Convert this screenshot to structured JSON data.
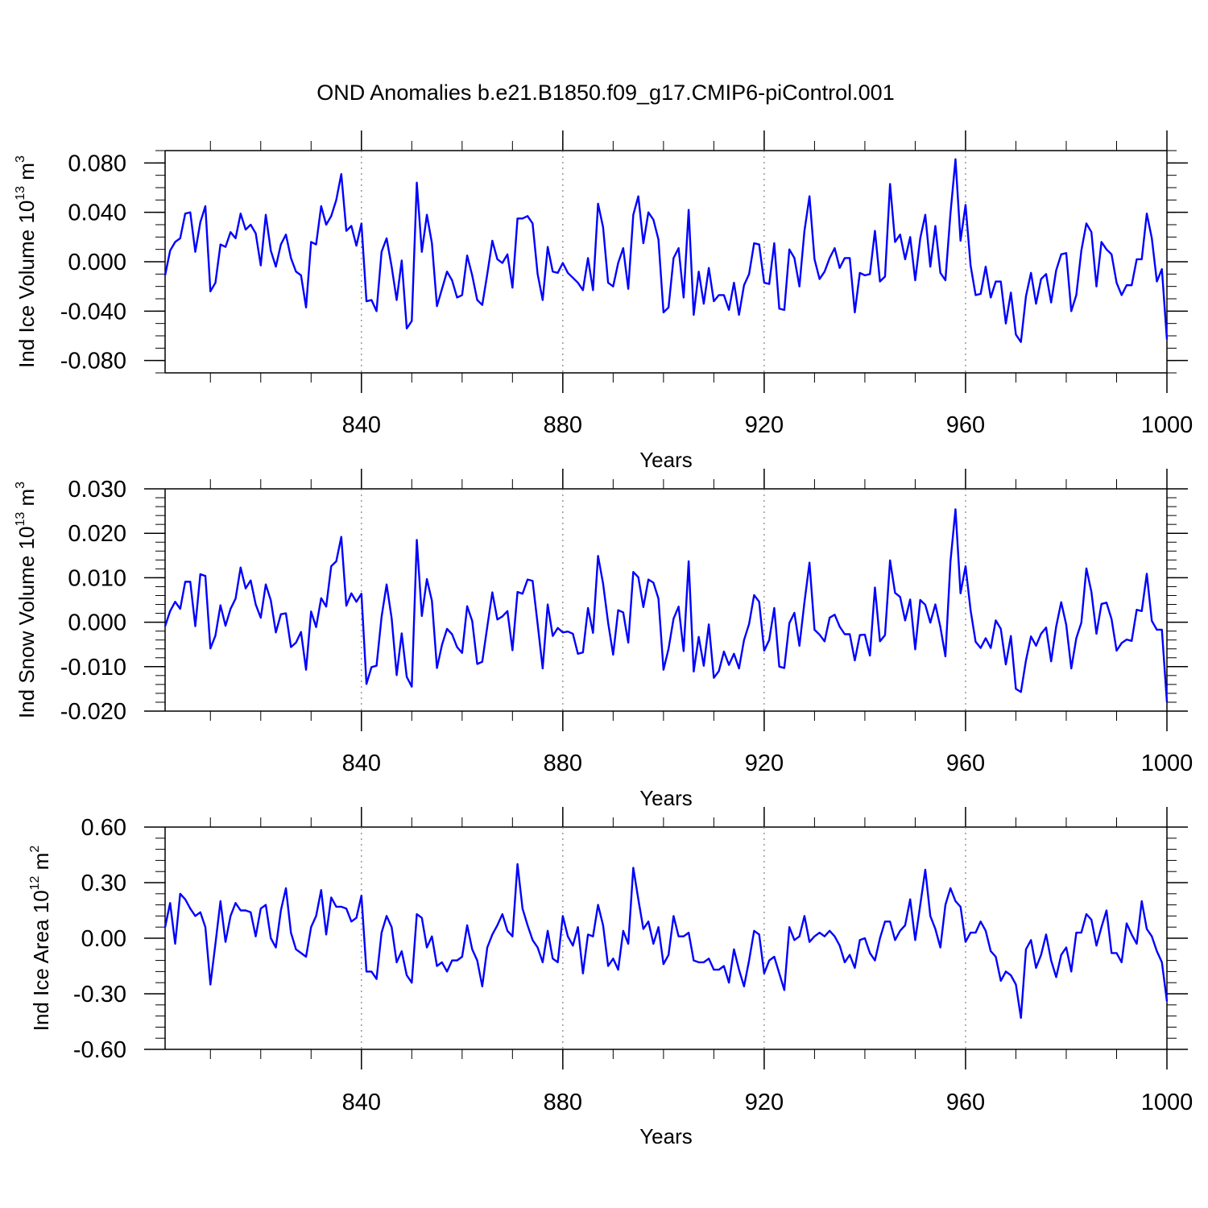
{
  "chart_data": {
    "title": "OND Anomalies b.e21.B1850.f09_g17.CMIP6-piControl.001",
    "panels": [
      {
        "type": "line",
        "ylabel_main": "Ind Ice Volume 10",
        "ylabel_exp": "13",
        "ylabel_unit": " m",
        "ylabel_unit_exp": "3",
        "xlabel": "Years",
        "xlim": [
          801,
          1000
        ],
        "ylim": [
          -0.09,
          0.09
        ],
        "yticks": [
          -0.08,
          -0.04,
          0.0,
          0.04,
          0.08
        ],
        "ytick_labels": [
          "-0.080",
          "-0.040",
          "0.000",
          "0.040",
          "0.080"
        ],
        "ytick_minor_step": 0.01,
        "xticks": [
          840,
          880,
          920,
          960,
          1000
        ],
        "xtick_labels": [
          "840",
          "880",
          "920",
          "960",
          "1000"
        ],
        "xtick_minor_step": 10,
        "vlines": [
          840,
          880,
          920,
          960
        ],
        "x_start": 801,
        "values": [
          -0.011,
          0.009,
          0.016,
          0.019,
          0.039,
          0.04,
          0.008,
          0.032,
          0.045,
          -0.024,
          -0.017,
          0.014,
          0.012,
          0.024,
          0.019,
          0.039,
          0.026,
          0.03,
          0.023,
          -0.003,
          0.038,
          0.009,
          -0.004,
          0.014,
          0.022,
          0.003,
          -0.008,
          -0.011,
          -0.037,
          0.016,
          0.014,
          0.045,
          0.03,
          0.037,
          0.05,
          0.071,
          0.025,
          0.029,
          0.013,
          0.031,
          -0.032,
          -0.031,
          -0.04,
          0.008,
          0.019,
          -0.004,
          -0.031,
          0.001,
          -0.054,
          -0.048,
          0.064,
          0.008,
          0.038,
          0.015,
          -0.036,
          -0.022,
          -0.008,
          -0.015,
          -0.029,
          -0.027,
          0.005,
          -0.011,
          -0.031,
          -0.035,
          -0.01,
          0.017,
          0.002,
          -0.001,
          0.006,
          -0.021,
          0.035,
          0.035,
          0.037,
          0.031,
          -0.01,
          -0.031,
          0.012,
          -0.008,
          -0.009,
          -0.001,
          -0.009,
          -0.013,
          -0.017,
          -0.023,
          0.003,
          -0.023,
          0.047,
          0.028,
          -0.017,
          -0.02,
          -0.001,
          0.011,
          -0.022,
          0.038,
          0.053,
          0.015,
          0.04,
          0.034,
          0.018,
          -0.041,
          -0.037,
          0.003,
          0.011,
          -0.029,
          0.042,
          -0.043,
          -0.008,
          -0.034,
          -0.005,
          -0.032,
          -0.027,
          -0.027,
          -0.039,
          -0.017,
          -0.043,
          -0.019,
          -0.01,
          0.015,
          0.014,
          -0.017,
          -0.018,
          0.015,
          -0.038,
          -0.039,
          0.01,
          0.003,
          -0.02,
          0.025,
          0.053,
          0.002,
          -0.014,
          -0.008,
          0.003,
          0.011,
          -0.005,
          0.003,
          0.003,
          -0.041,
          -0.009,
          -0.011,
          -0.01,
          0.025,
          -0.016,
          -0.012,
          0.063,
          0.016,
          0.022,
          0.002,
          0.02,
          -0.015,
          0.019,
          0.038,
          -0.004,
          0.029,
          -0.009,
          -0.015,
          0.039,
          0.083,
          0.017,
          0.046,
          -0.003,
          -0.027,
          -0.026,
          -0.004,
          -0.029,
          -0.016,
          -0.016,
          -0.05,
          -0.025,
          -0.059,
          -0.065,
          -0.028,
          -0.009,
          -0.034,
          -0.014,
          -0.01,
          -0.033,
          -0.007,
          0.006,
          0.007,
          -0.04,
          -0.027,
          0.009,
          0.031,
          0.024,
          -0.02,
          0.016,
          0.01,
          0.006,
          -0.017,
          -0.027,
          -0.019,
          -0.019,
          0.002,
          0.002,
          0.039,
          0.019,
          -0.016,
          -0.006,
          -0.063
        ]
      },
      {
        "type": "line",
        "ylabel_main": "Ind Snow Volume 10",
        "ylabel_exp": "13",
        "ylabel_unit": " m",
        "ylabel_unit_exp": "3",
        "xlabel": "Years",
        "xlim": [
          801,
          1000
        ],
        "ylim": [
          -0.02,
          0.03
        ],
        "yticks": [
          -0.02,
          -0.01,
          0.0,
          0.01,
          0.02,
          0.03
        ],
        "ytick_labels": [
          "-0.020",
          "-0.010",
          "0.000",
          "0.010",
          "0.020",
          "0.030"
        ],
        "ytick_minor_step": 0.002,
        "xticks": [
          840,
          880,
          920,
          960,
          1000
        ],
        "xtick_labels": [
          "840",
          "880",
          "920",
          "960",
          "1000"
        ],
        "xtick_minor_step": 10,
        "vlines": [
          840,
          880,
          920,
          960
        ],
        "x_start": 801,
        "values": [
          -0.0009,
          0.0025,
          0.0046,
          0.003,
          0.0091,
          0.0091,
          -0.0009,
          0.0108,
          0.0104,
          -0.0059,
          -0.003,
          0.0038,
          -0.0008,
          0.003,
          0.0053,
          0.0123,
          0.0076,
          0.0094,
          0.004,
          0.001,
          0.0085,
          0.0049,
          -0.0023,
          0.0018,
          0.002,
          -0.0056,
          -0.0046,
          -0.0022,
          -0.0107,
          0.0024,
          -0.0011,
          0.0054,
          0.0035,
          0.0126,
          0.0137,
          0.0192,
          0.0037,
          0.0065,
          0.0046,
          0.0064,
          -0.0139,
          -0.0101,
          -0.0098,
          0.0012,
          0.0085,
          0.0009,
          -0.0119,
          -0.0025,
          -0.0123,
          -0.0145,
          0.0185,
          0.0014,
          0.0097,
          0.0048,
          -0.0103,
          -0.0051,
          -0.0015,
          -0.0027,
          -0.0056,
          -0.0069,
          0.0036,
          0.0003,
          -0.0094,
          -0.0089,
          -0.001,
          0.0067,
          0.0006,
          0.0013,
          0.0025,
          -0.0063,
          0.0068,
          0.0064,
          0.0096,
          0.0093,
          -0.0004,
          -0.0104,
          0.004,
          -0.0031,
          -0.0013,
          -0.0023,
          -0.0021,
          -0.0026,
          -0.0071,
          -0.0068,
          0.0032,
          -0.0024,
          0.0149,
          0.0087,
          -0.0001,
          -0.0073,
          0.0027,
          0.0022,
          -0.0046,
          0.0113,
          0.0101,
          0.0034,
          0.0096,
          0.0089,
          0.0053,
          -0.0107,
          -0.006,
          0.0008,
          0.0035,
          -0.0065,
          0.0137,
          -0.0111,
          -0.0033,
          -0.0098,
          -0.0005,
          -0.0125,
          -0.011,
          -0.0066,
          -0.0096,
          -0.0071,
          -0.0104,
          -0.004,
          -0.0004,
          0.0061,
          0.0046,
          -0.0064,
          -0.004,
          0.0032,
          -0.01,
          -0.0103,
          -0.0002,
          0.0021,
          -0.0053,
          0.0045,
          0.0134,
          -0.0017,
          -0.0028,
          -0.0043,
          0.001,
          0.0017,
          -0.001,
          -0.0027,
          -0.0027,
          -0.0086,
          -0.0029,
          -0.0028,
          -0.0075,
          0.0078,
          -0.0043,
          -0.0029,
          0.0139,
          0.0066,
          0.0057,
          0.0004,
          0.0051,
          -0.0061,
          0.005,
          0.0039,
          -0.0001,
          0.004,
          -0.0011,
          -0.0077,
          0.0136,
          0.0254,
          0.0065,
          0.0126,
          0.0027,
          -0.0044,
          -0.0058,
          -0.0036,
          -0.0058,
          0.0004,
          -0.0015,
          -0.0095,
          -0.0031,
          -0.015,
          -0.0157,
          -0.0086,
          -0.0032,
          -0.0053,
          -0.0026,
          -0.0012,
          -0.0088,
          -0.001,
          0.0045,
          -0.0006,
          -0.0104,
          -0.0036,
          -0.0001,
          0.0121,
          0.0068,
          -0.0026,
          0.0041,
          0.0044,
          0.0007,
          -0.0064,
          -0.0047,
          -0.0039,
          -0.0042,
          0.0028,
          0.0025,
          0.0109,
          0.0003,
          -0.0017,
          -0.0017,
          -0.018
        ]
      },
      {
        "type": "line",
        "ylabel_main": "Ind Ice Area 10",
        "ylabel_exp": "12",
        "ylabel_unit": " m",
        "ylabel_unit_exp": "2",
        "xlabel": "Years",
        "xlim": [
          801,
          1000
        ],
        "ylim": [
          -0.6,
          0.6
        ],
        "yticks": [
          -0.6,
          -0.3,
          0.0,
          0.3,
          0.6
        ],
        "ytick_labels": [
          "-0.60",
          "-0.30",
          "0.00",
          "0.30",
          "0.60"
        ],
        "ytick_minor_step": 0.06,
        "xticks": [
          840,
          880,
          920,
          960,
          1000
        ],
        "xtick_labels": [
          "840",
          "880",
          "920",
          "960",
          "1000"
        ],
        "xtick_minor_step": 10,
        "vlines": [
          840,
          880,
          920,
          960
        ],
        "x_start": 801,
        "values": [
          0.06,
          0.19,
          -0.03,
          0.24,
          0.21,
          0.16,
          0.12,
          0.14,
          0.06,
          -0.25,
          -0.03,
          0.2,
          -0.02,
          0.12,
          0.19,
          0.15,
          0.15,
          0.14,
          0.01,
          0.16,
          0.18,
          0.0,
          -0.05,
          0.15,
          0.27,
          0.03,
          -0.06,
          -0.08,
          -0.1,
          0.06,
          0.12,
          0.26,
          0.02,
          0.22,
          0.17,
          0.17,
          0.16,
          0.09,
          0.11,
          0.23,
          -0.18,
          -0.18,
          -0.22,
          0.03,
          0.12,
          0.06,
          -0.13,
          -0.07,
          -0.2,
          -0.24,
          0.13,
          0.11,
          -0.05,
          0.01,
          -0.15,
          -0.13,
          -0.18,
          -0.12,
          -0.12,
          -0.1,
          0.07,
          -0.06,
          -0.12,
          -0.26,
          -0.05,
          0.02,
          0.07,
          0.13,
          0.04,
          0.01,
          0.4,
          0.16,
          0.07,
          -0.01,
          -0.05,
          -0.13,
          0.04,
          -0.11,
          -0.13,
          0.12,
          0.01,
          -0.04,
          0.06,
          -0.19,
          0.02,
          0.01,
          0.18,
          0.07,
          -0.15,
          -0.11,
          -0.17,
          0.04,
          -0.03,
          0.38,
          0.21,
          0.05,
          0.09,
          -0.03,
          0.06,
          -0.14,
          -0.09,
          0.12,
          0.01,
          0.01,
          0.03,
          -0.12,
          -0.13,
          -0.13,
          -0.11,
          -0.17,
          -0.17,
          -0.15,
          -0.24,
          -0.06,
          -0.17,
          -0.26,
          -0.12,
          0.04,
          0.02,
          -0.19,
          -0.12,
          -0.1,
          -0.19,
          -0.28,
          0.06,
          -0.01,
          0.01,
          0.12,
          -0.02,
          0.01,
          0.03,
          0.01,
          0.04,
          0.01,
          -0.04,
          -0.13,
          -0.09,
          -0.16,
          -0.01,
          0.0,
          -0.08,
          -0.12,
          0.0,
          0.09,
          0.09,
          -0.01,
          0.04,
          0.07,
          0.21,
          -0.01,
          0.18,
          0.37,
          0.12,
          0.05,
          -0.05,
          0.18,
          0.27,
          0.2,
          0.17,
          -0.02,
          0.03,
          0.03,
          0.09,
          0.04,
          -0.07,
          -0.1,
          -0.23,
          -0.18,
          -0.2,
          -0.25,
          -0.43,
          -0.06,
          -0.01,
          -0.16,
          -0.09,
          0.02,
          -0.12,
          -0.21,
          -0.09,
          -0.05,
          -0.18,
          0.03,
          0.03,
          0.13,
          0.1,
          -0.04,
          0.06,
          0.15,
          -0.08,
          -0.08,
          -0.13,
          0.08,
          0.02,
          -0.03,
          0.2,
          0.05,
          0.01,
          -0.07,
          -0.13,
          -0.34
        ]
      }
    ]
  },
  "style": {
    "line_color": "#0000ff",
    "axis_color": "#000000",
    "vline_color": "#7f7f7f"
  }
}
